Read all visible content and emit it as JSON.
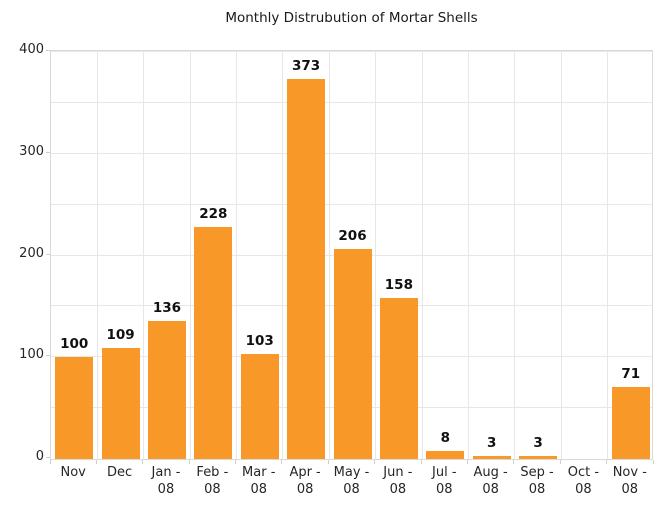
{
  "title": "Monthly Distrubution of Mortar Shells",
  "colors": {
    "bar": "#F89828",
    "grid": "#E7E7E7",
    "axis_border": "#D9D9D9",
    "tick_text": "#262626",
    "bar_label_text": "#111111",
    "background": "#FFFFFF"
  },
  "chart_data": {
    "type": "bar",
    "title": "Monthly Distrubution of Mortar Shells",
    "categories": [
      "Nov",
      "Dec",
      "Jan - 08",
      "Feb - 08",
      "Mar - 08",
      "Apr - 08",
      "May - 08",
      "Jun - 08",
      "Jul - 08",
      "Aug - 08",
      "Sep - 08",
      "Oct - 08",
      "Nov - 08"
    ],
    "category_lines": [
      [
        "Nov"
      ],
      [
        "Dec"
      ],
      [
        "Jan -",
        "08"
      ],
      [
        "Feb -",
        "08"
      ],
      [
        "Mar -",
        "08"
      ],
      [
        "Apr -",
        "08"
      ],
      [
        "May -",
        "08"
      ],
      [
        "Jun -",
        "08"
      ],
      [
        "Jul -",
        "08"
      ],
      [
        "Aug -",
        "08"
      ],
      [
        "Sep -",
        "08"
      ],
      [
        "Oct -",
        "08"
      ],
      [
        "Nov -",
        "08"
      ]
    ],
    "values": [
      100,
      109,
      136,
      228,
      103,
      373,
      206,
      158,
      8,
      3,
      3,
      0,
      71
    ],
    "bar_labels": [
      "100",
      "109",
      "136",
      "228",
      "103",
      "373",
      "206",
      "158",
      "8",
      "3",
      "3",
      "",
      "71"
    ],
    "xlabel": "",
    "ylabel": "",
    "ylim": [
      0,
      400
    ],
    "yticks": [
      0,
      100,
      200,
      300,
      400
    ],
    "grid_step": 50,
    "grid": "on",
    "legend": "none"
  }
}
